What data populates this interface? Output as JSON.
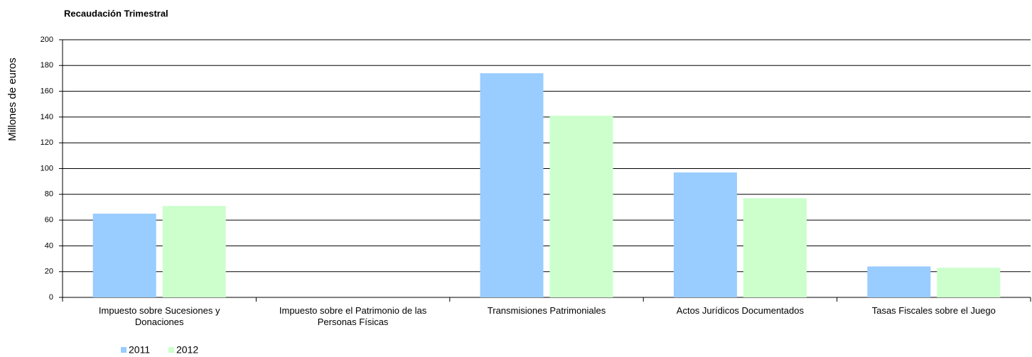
{
  "chart_data": {
    "type": "bar",
    "title": "Recaudación Trimestral",
    "y_label": "Millones de euros",
    "categories": [
      "Impuesto sobre Sucesiones y Donaciones",
      "Impuesto sobre el Patrimonio de las Personas Físicas",
      "Transmisiones Patrimoniales",
      "Actos Jurídicos Documentados",
      "Tasas Fiscales sobre el Juego"
    ],
    "series": [
      {
        "name": "2011",
        "color": "#99ccff",
        "values": [
          65,
          0,
          174,
          97,
          24
        ]
      },
      {
        "name": "2012",
        "color": "#ccffcc",
        "values": [
          71,
          0,
          141,
          77,
          23
        ]
      }
    ],
    "ylim": [
      0,
      200
    ],
    "yticks": [
      0,
      20,
      40,
      60,
      80,
      100,
      120,
      140,
      160,
      180,
      200
    ],
    "grid": true,
    "legend": "bottom"
  }
}
